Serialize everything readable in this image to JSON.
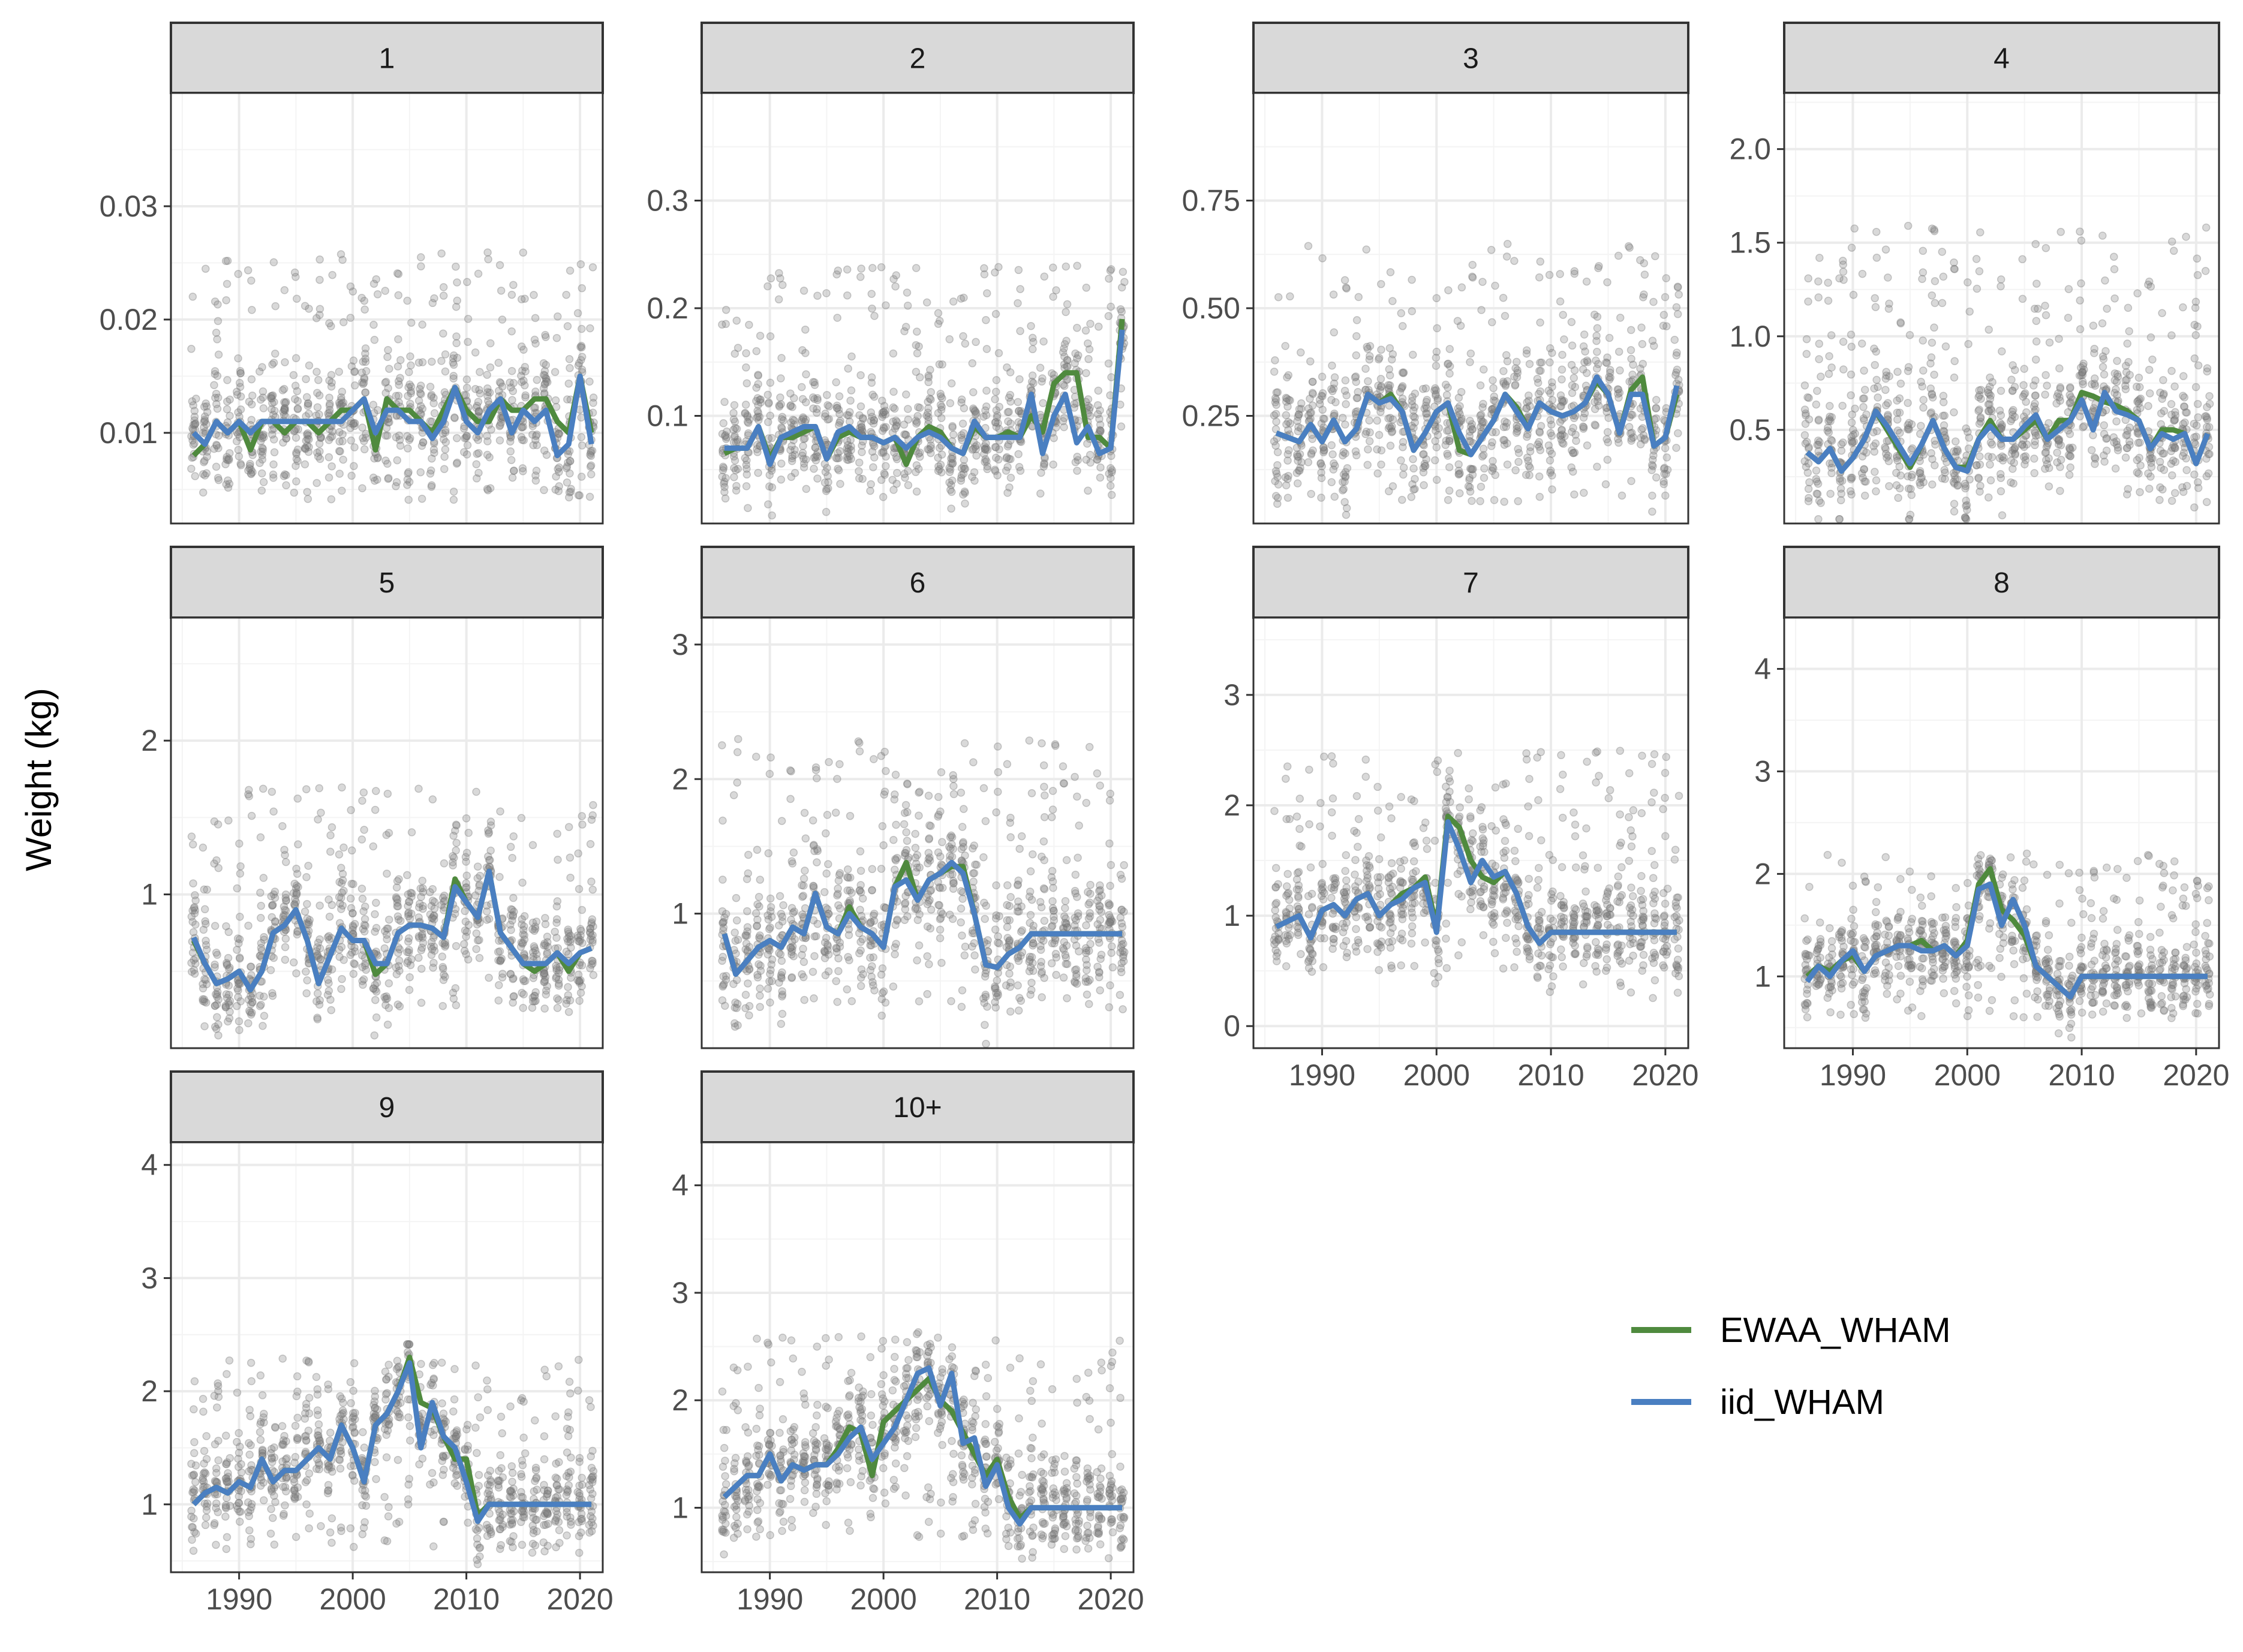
{
  "chart_data": {
    "type": "scatter+line",
    "facet_by": "age",
    "title": "",
    "xlabel": "",
    "ylabel": "Weight (kg)",
    "grid": true,
    "legend_position": "right",
    "x_breaks": [
      1990,
      2000,
      2010,
      2020
    ],
    "xlim": [
      1984,
      2022
    ],
    "observations_color": "#808080",
    "series": [
      {
        "name": "EWAA_WHAM",
        "color": "#4f8a3e"
      },
      {
        "name": "iid_WHAM",
        "color": "#4a7fc1"
      }
    ],
    "years": [
      1986,
      1987,
      1988,
      1989,
      1990,
      1991,
      1992,
      1993,
      1994,
      1995,
      1996,
      1997,
      1998,
      1999,
      2000,
      2001,
      2002,
      2003,
      2004,
      2005,
      2006,
      2007,
      2008,
      2009,
      2010,
      2011,
      2012,
      2013,
      2014,
      2015,
      2016,
      2017,
      2018,
      2019,
      2020,
      2021
    ],
    "panels": [
      {
        "label": "1",
        "ylim": [
          0.002,
          0.04
        ],
        "yticks": [
          0.01,
          0.02,
          0.03
        ],
        "ytick_labels": [
          "0.01",
          "0.02",
          "0.03"
        ],
        "obs_range": [
          0.004,
          0.026
        ],
        "ewaa": [
          0.008,
          0.009,
          0.011,
          0.01,
          0.011,
          0.0085,
          0.011,
          0.011,
          0.01,
          0.011,
          0.011,
          0.01,
          0.011,
          0.012,
          0.012,
          0.013,
          0.0085,
          0.013,
          0.012,
          0.012,
          0.011,
          0.01,
          0.012,
          0.014,
          0.012,
          0.011,
          0.011,
          0.013,
          0.012,
          0.012,
          0.013,
          0.013,
          0.011,
          0.01,
          0.015,
          0.01
        ],
        "iid": [
          0.01,
          0.009,
          0.011,
          0.01,
          0.011,
          0.01,
          0.011,
          0.011,
          0.011,
          0.011,
          0.011,
          0.011,
          0.011,
          0.011,
          0.012,
          0.013,
          0.01,
          0.012,
          0.012,
          0.011,
          0.011,
          0.0095,
          0.011,
          0.014,
          0.011,
          0.01,
          0.012,
          0.013,
          0.01,
          0.012,
          0.011,
          0.012,
          0.008,
          0.009,
          0.015,
          0.009
        ]
      },
      {
        "label": "2",
        "ylim": [
          0.0,
          0.4
        ],
        "yticks": [
          0.1,
          0.2,
          0.3
        ],
        "ytick_labels": [
          "0.1",
          "0.2",
          "0.3"
        ],
        "obs_range": [
          0.04,
          0.24
        ],
        "ewaa": [
          0.065,
          0.07,
          0.07,
          0.09,
          0.06,
          0.08,
          0.08,
          0.085,
          0.09,
          0.06,
          0.08,
          0.085,
          0.08,
          0.08,
          0.075,
          0.08,
          0.055,
          0.08,
          0.09,
          0.085,
          0.07,
          0.065,
          0.09,
          0.08,
          0.08,
          0.085,
          0.08,
          0.1,
          0.085,
          0.13,
          0.14,
          0.14,
          0.08,
          0.08,
          0.07,
          0.19
        ],
        "iid": [
          0.07,
          0.07,
          0.07,
          0.09,
          0.055,
          0.08,
          0.085,
          0.09,
          0.09,
          0.06,
          0.085,
          0.09,
          0.08,
          0.08,
          0.075,
          0.08,
          0.07,
          0.08,
          0.085,
          0.08,
          0.07,
          0.065,
          0.095,
          0.08,
          0.08,
          0.08,
          0.08,
          0.12,
          0.065,
          0.1,
          0.12,
          0.075,
          0.09,
          0.065,
          0.07,
          0.18
        ]
      },
      {
        "label": "3",
        "ylim": [
          0.0,
          1.0
        ],
        "yticks": [
          0.25,
          0.5,
          0.75
        ],
        "ytick_labels": [
          "0.25",
          "0.50",
          "0.75"
        ],
        "obs_range": [
          0.05,
          0.65
        ],
        "ewaa": [
          0.21,
          0.2,
          0.19,
          0.23,
          0.19,
          0.24,
          0.19,
          0.22,
          0.3,
          0.28,
          0.3,
          0.26,
          0.17,
          0.21,
          0.26,
          0.28,
          0.17,
          0.16,
          0.2,
          0.24,
          0.3,
          0.27,
          0.22,
          0.28,
          0.26,
          0.25,
          0.26,
          0.28,
          0.33,
          0.3,
          0.21,
          0.31,
          0.34,
          0.18,
          0.2,
          0.3
        ],
        "iid": [
          0.21,
          0.2,
          0.19,
          0.23,
          0.19,
          0.24,
          0.19,
          0.22,
          0.3,
          0.28,
          0.29,
          0.26,
          0.17,
          0.21,
          0.26,
          0.28,
          0.21,
          0.16,
          0.2,
          0.24,
          0.3,
          0.26,
          0.22,
          0.28,
          0.26,
          0.25,
          0.26,
          0.28,
          0.34,
          0.3,
          0.21,
          0.3,
          0.3,
          0.18,
          0.2,
          0.32
        ]
      },
      {
        "label": "4",
        "ylim": [
          0.0,
          2.3
        ],
        "yticks": [
          0.5,
          1.0,
          1.5,
          2.0
        ],
        "ytick_labels": [
          "0.5",
          "1.0",
          "1.5",
          "2.0"
        ],
        "obs_range": [
          0.15,
          1.6
        ],
        "ewaa": [
          0.38,
          0.33,
          0.4,
          0.28,
          0.35,
          0.45,
          0.6,
          0.5,
          0.4,
          0.3,
          0.42,
          0.55,
          0.4,
          0.3,
          0.3,
          0.45,
          0.55,
          0.45,
          0.45,
          0.5,
          0.55,
          0.45,
          0.55,
          0.55,
          0.7,
          0.68,
          0.65,
          0.63,
          0.6,
          0.55,
          0.4,
          0.5,
          0.5,
          0.48,
          0.32,
          0.48
        ],
        "iid": [
          0.38,
          0.33,
          0.4,
          0.28,
          0.35,
          0.45,
          0.6,
          0.52,
          0.42,
          0.32,
          0.42,
          0.55,
          0.4,
          0.3,
          0.28,
          0.45,
          0.52,
          0.45,
          0.45,
          0.52,
          0.58,
          0.45,
          0.5,
          0.55,
          0.66,
          0.5,
          0.7,
          0.6,
          0.58,
          0.55,
          0.4,
          0.48,
          0.45,
          0.48,
          0.32,
          0.48
        ]
      },
      {
        "label": "5",
        "ylim": [
          0.0,
          2.8
        ],
        "yticks": [
          1,
          2
        ],
        "ytick_labels": [
          "1",
          "2"
        ],
        "obs_range": [
          0.25,
          1.7
        ],
        "ewaa": [
          0.7,
          0.55,
          0.42,
          0.45,
          0.5,
          0.38,
          0.5,
          0.75,
          0.8,
          0.9,
          0.7,
          0.42,
          0.6,
          0.78,
          0.7,
          0.7,
          0.48,
          0.55,
          0.75,
          0.8,
          0.8,
          0.78,
          0.72,
          1.1,
          0.95,
          0.85,
          1.15,
          0.75,
          0.65,
          0.55,
          0.5,
          0.55,
          0.62,
          0.5,
          0.62,
          0.65
        ],
        "iid": [
          0.72,
          0.55,
          0.42,
          0.45,
          0.5,
          0.38,
          0.5,
          0.75,
          0.8,
          0.9,
          0.7,
          0.42,
          0.6,
          0.78,
          0.7,
          0.7,
          0.55,
          0.55,
          0.75,
          0.8,
          0.8,
          0.78,
          0.72,
          1.05,
          0.95,
          0.85,
          1.15,
          0.75,
          0.65,
          0.55,
          0.55,
          0.55,
          0.62,
          0.55,
          0.62,
          0.65
        ],
        "y_note": "scale"
      },
      {
        "label": "6",
        "ylim": [
          0.0,
          3.2
        ],
        "yticks": [
          1,
          2,
          3
        ],
        "ytick_labels": [
          "1",
          "2",
          "3"
        ],
        "obs_range": [
          0.3,
          2.3
        ],
        "ewaa": [
          0.85,
          0.55,
          0.65,
          0.75,
          0.8,
          0.75,
          0.9,
          0.85,
          1.15,
          0.9,
          0.85,
          1.05,
          0.9,
          0.85,
          0.75,
          1.2,
          1.38,
          1.1,
          1.25,
          1.3,
          1.35,
          1.35,
          1.0,
          0.62,
          0.6,
          0.7,
          0.75,
          0.85,
          0.85,
          0.85,
          0.85,
          0.85,
          0.85,
          0.85,
          0.85,
          0.85
        ],
        "iid": [
          0.85,
          0.55,
          0.65,
          0.75,
          0.8,
          0.75,
          0.9,
          0.85,
          1.15,
          0.9,
          0.85,
          1.0,
          0.9,
          0.85,
          0.75,
          1.2,
          1.25,
          1.1,
          1.25,
          1.3,
          1.38,
          1.3,
          1.0,
          0.62,
          0.6,
          0.7,
          0.75,
          0.85,
          0.85,
          0.85,
          0.85,
          0.85,
          0.85,
          0.85,
          0.85,
          0.85
        ]
      },
      {
        "label": "7",
        "ylim": [
          -0.2,
          3.7
        ],
        "yticks": [
          0,
          1,
          2,
          3
        ],
        "ytick_labels": [
          "0",
          "1",
          "2",
          "3"
        ],
        "obs_range": [
          0.5,
          2.5
        ],
        "ewaa": [
          0.9,
          0.95,
          1.0,
          0.8,
          1.05,
          1.1,
          1.0,
          1.15,
          1.2,
          1.0,
          1.1,
          1.2,
          1.25,
          1.35,
          0.9,
          1.9,
          1.8,
          1.5,
          1.35,
          1.3,
          1.4,
          1.2,
          0.9,
          0.75,
          0.85,
          0.85,
          0.85,
          0.85,
          0.85,
          0.85,
          0.85,
          0.85,
          0.85,
          0.85,
          0.85,
          0.85
        ],
        "iid": [
          0.9,
          0.95,
          1.0,
          0.8,
          1.05,
          1.1,
          1.0,
          1.15,
          1.2,
          1.0,
          1.1,
          1.15,
          1.25,
          1.3,
          0.85,
          1.85,
          1.6,
          1.3,
          1.5,
          1.35,
          1.4,
          1.2,
          0.9,
          0.75,
          0.85,
          0.85,
          0.85,
          0.85,
          0.85,
          0.85,
          0.85,
          0.85,
          0.85,
          0.85,
          0.85,
          0.85
        ]
      },
      {
        "label": "8",
        "ylim": [
          0.3,
          4.5
        ],
        "yticks": [
          1,
          2,
          3,
          4
        ],
        "ytick_labels": [
          "1",
          "2",
          "3",
          "4"
        ],
        "obs_range": [
          0.6,
          2.2
        ],
        "ewaa": [
          1.0,
          1.1,
          1.05,
          1.15,
          1.2,
          1.05,
          1.2,
          1.25,
          1.3,
          1.3,
          1.35,
          1.25,
          1.3,
          1.2,
          1.35,
          1.9,
          2.05,
          1.65,
          1.55,
          1.4,
          1.1,
          1.0,
          0.9,
          0.8,
          1.0,
          1.0,
          1.0,
          1.0,
          1.0,
          1.0,
          1.0,
          1.0,
          1.0,
          1.0,
          1.0,
          1.0
        ],
        "iid": [
          0.95,
          1.1,
          1.0,
          1.15,
          1.25,
          1.05,
          1.2,
          1.25,
          1.3,
          1.3,
          1.25,
          1.25,
          1.3,
          1.2,
          1.3,
          1.85,
          1.9,
          1.5,
          1.75,
          1.5,
          1.1,
          1.0,
          0.9,
          0.8,
          1.0,
          1.0,
          1.0,
          1.0,
          1.0,
          1.0,
          1.0,
          1.0,
          1.0,
          1.0,
          1.0,
          1.0
        ]
      },
      {
        "label": "9",
        "ylim": [
          0.4,
          4.2
        ],
        "yticks": [
          1,
          2,
          3,
          4
        ],
        "ytick_labels": [
          "1",
          "2",
          "3",
          "4"
        ],
        "obs_range": [
          0.6,
          2.3
        ],
        "ewaa": [
          1.0,
          1.1,
          1.15,
          1.1,
          1.2,
          1.15,
          1.4,
          1.2,
          1.3,
          1.3,
          1.4,
          1.5,
          1.4,
          1.7,
          1.5,
          1.2,
          1.7,
          1.8,
          2.0,
          2.3,
          1.9,
          1.85,
          1.6,
          1.4,
          1.4,
          0.9,
          1.0,
          1.0,
          1.0,
          1.0,
          1.0,
          1.0,
          1.0,
          1.0,
          1.0,
          1.0
        ],
        "iid": [
          1.0,
          1.1,
          1.15,
          1.1,
          1.2,
          1.15,
          1.4,
          1.2,
          1.3,
          1.3,
          1.4,
          1.5,
          1.4,
          1.7,
          1.5,
          1.2,
          1.7,
          1.8,
          2.0,
          2.25,
          1.5,
          1.9,
          1.6,
          1.5,
          1.2,
          0.85,
          1.0,
          1.0,
          1.0,
          1.0,
          1.0,
          1.0,
          1.0,
          1.0,
          1.0,
          1.0
        ]
      },
      {
        "label": "10+",
        "ylim": [
          0.4,
          4.4
        ],
        "yticks": [
          1,
          2,
          3,
          4
        ],
        "ytick_labels": [
          "1",
          "2",
          "3",
          "4"
        ],
        "obs_range": [
          0.7,
          2.6
        ],
        "ewaa": [
          1.1,
          1.2,
          1.3,
          1.3,
          1.5,
          1.25,
          1.4,
          1.35,
          1.4,
          1.4,
          1.55,
          1.75,
          1.7,
          1.3,
          1.8,
          1.9,
          2.0,
          2.1,
          2.2,
          2.0,
          1.9,
          1.7,
          1.5,
          1.3,
          1.45,
          1.1,
          0.9,
          1.0,
          1.0,
          1.0,
          1.0,
          1.0,
          1.0,
          1.0,
          1.0,
          1.0
        ],
        "iid": [
          1.1,
          1.2,
          1.3,
          1.3,
          1.5,
          1.25,
          1.4,
          1.35,
          1.4,
          1.4,
          1.5,
          1.65,
          1.75,
          1.45,
          1.6,
          1.75,
          2.0,
          2.25,
          2.3,
          1.95,
          2.25,
          1.6,
          1.65,
          1.2,
          1.4,
          1.0,
          0.85,
          1.0,
          1.0,
          1.0,
          1.0,
          1.0,
          1.0,
          1.0,
          1.0,
          1.0
        ]
      }
    ]
  }
}
